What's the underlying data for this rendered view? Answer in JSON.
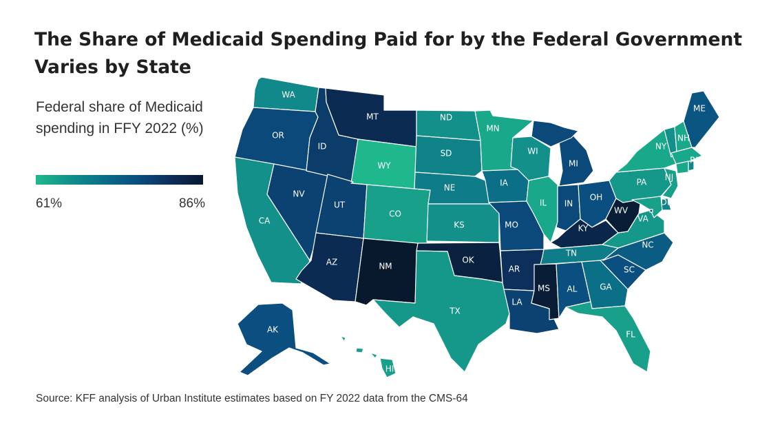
{
  "title": "The Share of Medicaid Spending Paid for by the Federal Government Varies by State",
  "legend": {
    "title": "Federal share of Medicaid spending in FFY 2022 (%)",
    "min_label": "61%",
    "max_label": "86%",
    "min_value": 61,
    "max_value": 86,
    "gradient_stops": [
      "#1fb88c",
      "#13908a",
      "#0b6f88",
      "#0a4f80",
      "#0c2f5c",
      "#08192e"
    ]
  },
  "chart_data": {
    "type": "choropleth",
    "measure": "Federal share of Medicaid spending in FFY 2022 (%)",
    "range": [
      61,
      86
    ],
    "states": [
      {
        "abbr": "WA",
        "value": 67
      },
      {
        "abbr": "OR",
        "value": 77
      },
      {
        "abbr": "CA",
        "value": 66
      },
      {
        "abbr": "NV",
        "value": 78
      },
      {
        "abbr": "ID",
        "value": 79
      },
      {
        "abbr": "MT",
        "value": 82
      },
      {
        "abbr": "WY",
        "value": 61
      },
      {
        "abbr": "UT",
        "value": 78
      },
      {
        "abbr": "CO",
        "value": 64
      },
      {
        "abbr": "AZ",
        "value": 82
      },
      {
        "abbr": "NM",
        "value": 86
      },
      {
        "abbr": "ND",
        "value": 66
      },
      {
        "abbr": "SD",
        "value": 68
      },
      {
        "abbr": "NE",
        "value": 69
      },
      {
        "abbr": "KS",
        "value": 66
      },
      {
        "abbr": "OK",
        "value": 84
      },
      {
        "abbr": "TX",
        "value": 65
      },
      {
        "abbr": "MN",
        "value": 63
      },
      {
        "abbr": "IA",
        "value": 71
      },
      {
        "abbr": "MO",
        "value": 77
      },
      {
        "abbr": "AR",
        "value": 81
      },
      {
        "abbr": "LA",
        "value": 78
      },
      {
        "abbr": "WI",
        "value": 66
      },
      {
        "abbr": "IL",
        "value": 63
      },
      {
        "abbr": "MI",
        "value": 77
      },
      {
        "abbr": "IN",
        "value": 77
      },
      {
        "abbr": "OH",
        "value": 76
      },
      {
        "abbr": "KY",
        "value": 83
      },
      {
        "abbr": "TN",
        "value": 69
      },
      {
        "abbr": "MS",
        "value": 85
      },
      {
        "abbr": "AL",
        "value": 76
      },
      {
        "abbr": "GA",
        "value": 71
      },
      {
        "abbr": "FL",
        "value": 64
      },
      {
        "abbr": "SC",
        "value": 76
      },
      {
        "abbr": "NC",
        "value": 74
      },
      {
        "abbr": "VA",
        "value": 65
      },
      {
        "abbr": "WV",
        "value": 85
      },
      {
        "abbr": "PA",
        "value": 65
      },
      {
        "abbr": "NY",
        "value": 63
      },
      {
        "abbr": "NJ",
        "value": 64
      },
      {
        "abbr": "DE",
        "value": 68
      },
      {
        "abbr": "MD",
        "value": 64
      },
      {
        "abbr": "VT",
        "value": 66
      },
      {
        "abbr": "NH",
        "value": 63
      },
      {
        "abbr": "ME",
        "value": 75
      },
      {
        "abbr": "MA",
        "value": 63
      },
      {
        "abbr": "CT",
        "value": 63
      },
      {
        "abbr": "RI",
        "value": 67
      },
      {
        "abbr": "AK",
        "value": 76
      },
      {
        "abbr": "HI",
        "value": 64
      },
      {
        "abbr": "DC",
        "value": 77
      }
    ]
  },
  "source": "Source: KFF analysis of Urban Institute estimates based on FY 2022 data from the CMS-64"
}
